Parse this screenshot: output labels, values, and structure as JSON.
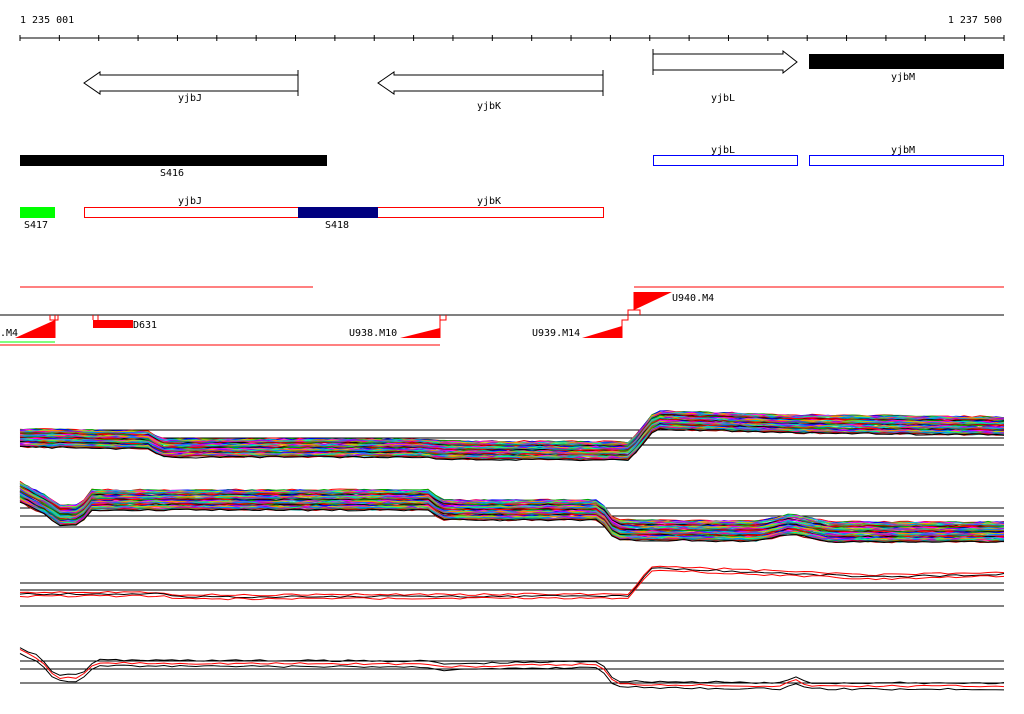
{
  "coordinates": {
    "start_label": "1 235 001",
    "end_label": "1 237 500"
  },
  "genes": {
    "yjbJ": "yjbJ",
    "yjbK": "yjbK",
    "yjbL": "yjbL",
    "yjbM": "yjbM"
  },
  "segments": {
    "s416": "S416",
    "s417": "S417",
    "s418": "S418"
  },
  "transcripts": {
    "d631": "D631",
    "u_left": ".M4",
    "u938": "U938.M10",
    "u939": "U939.M14",
    "u940": "U940.M4"
  },
  "colors": {
    "segment_black": "#000000",
    "segment_green": "#00ff00",
    "segment_navy": "#000080",
    "outline_red": "#ff0000",
    "outline_blue": "#0000ff"
  }
}
